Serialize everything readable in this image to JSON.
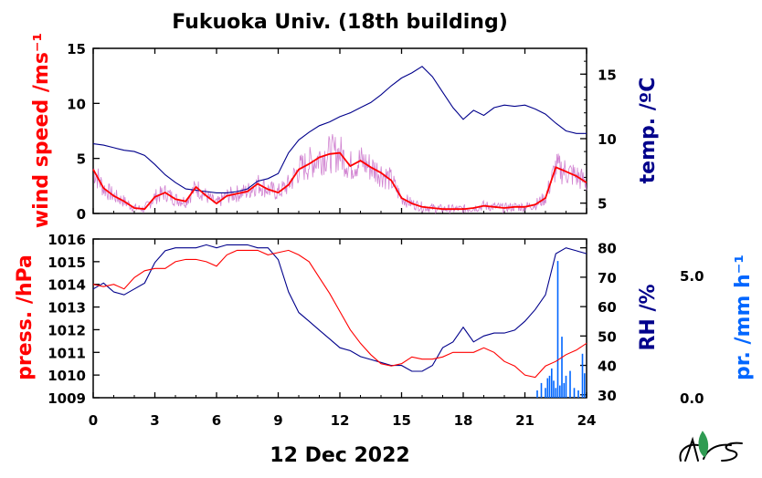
{
  "title": "Fukuoka Univ. (18th building)",
  "xlabel": "12 Dec 2022",
  "colors": {
    "wind": "#ff0000",
    "wind_raw": "#cc77cc",
    "temp": "#00008b",
    "press": "#ff0000",
    "rh": "#00008b",
    "precip": "#0066ff"
  },
  "chart_data": [
    {
      "type": "line",
      "panel": "top",
      "x_ticks": [
        "0",
        "3",
        "6",
        "9",
        "12",
        "15",
        "18",
        "21",
        "24"
      ],
      "xlim": [
        0,
        24
      ],
      "y_left": {
        "label": "wind speed /ms⁻¹",
        "ticks": [
          "0",
          "5",
          "10",
          "15"
        ],
        "ylim": [
          0,
          15
        ]
      },
      "y_right": {
        "label": "temp. /ºC",
        "ticks": [
          "5",
          "10",
          "15"
        ],
        "ylim": [
          4.2,
          17
        ]
      },
      "series": [
        {
          "axis": "left",
          "x": [
            0,
            0.5,
            1,
            1.5,
            2,
            2.5,
            3,
            3.5,
            4,
            4.5,
            5,
            5.5,
            6,
            6.5,
            7,
            7.5,
            8,
            8.5,
            9,
            9.5,
            10,
            10.5,
            11,
            11.5,
            12,
            12.5,
            13,
            13.5,
            14,
            14.5,
            15,
            15.5,
            16,
            16.5,
            17,
            17.5,
            18,
            18.5,
            19,
            19.5,
            20,
            20.5,
            21,
            21.5,
            22,
            22.5,
            23,
            23.5,
            24
          ],
          "y": [
            4,
            2.3,
            1.6,
            1.1,
            0.5,
            0.4,
            1.5,
            1.9,
            1.3,
            1.1,
            2.4,
            1.6,
            0.9,
            1.6,
            1.8,
            2.0,
            2.7,
            2.2,
            1.9,
            2.6,
            4.0,
            4.5,
            5.1,
            5.4,
            5.5,
            4.3,
            4.8,
            4.2,
            3.7,
            3.0,
            1.4,
            0.9,
            0.6,
            0.5,
            0.4,
            0.4,
            0.4,
            0.5,
            0.7,
            0.6,
            0.5,
            0.6,
            0.6,
            0.8,
            1.4,
            4.2,
            3.8,
            3.4,
            2.8
          ]
        },
        {
          "axis": "right",
          "x": [
            0,
            0.5,
            1,
            1.5,
            2,
            2.5,
            3,
            3.5,
            4,
            4.5,
            5,
            5.5,
            6,
            6.5,
            7,
            7.5,
            8,
            8.5,
            9,
            9.5,
            10,
            10.5,
            11,
            11.5,
            12,
            12.5,
            13,
            13.5,
            14,
            14.5,
            15,
            15.5,
            16,
            16.5,
            17,
            17.5,
            18,
            18.5,
            19,
            19.5,
            20,
            20.5,
            21,
            21.5,
            22,
            22.5,
            23,
            23.5,
            24
          ],
          "y": [
            9.6,
            9.5,
            9.3,
            9.1,
            9.0,
            8.7,
            8.0,
            7.2,
            6.6,
            6.1,
            6.0,
            5.9,
            5.8,
            5.8,
            5.9,
            6.1,
            6.7,
            6.9,
            7.3,
            8.9,
            9.9,
            10.5,
            11.0,
            11.3,
            11.7,
            12.0,
            12.4,
            12.8,
            13.4,
            14.1,
            14.7,
            15.1,
            15.6,
            14.8,
            13.6,
            12.4,
            11.5,
            12.2,
            11.8,
            12.4,
            12.6,
            12.5,
            12.6,
            12.3,
            11.9,
            11.2,
            10.6,
            10.4,
            10.4
          ]
        }
      ]
    },
    {
      "type": "line",
      "panel": "bottom",
      "x_ticks": [
        "0",
        "3",
        "6",
        "9",
        "12",
        "15",
        "18",
        "21",
        "24"
      ],
      "xlim": [
        0,
        24
      ],
      "y_left": {
        "label": "press. /hPa",
        "ticks": [
          "1009",
          "1010",
          "1011",
          "1012",
          "1013",
          "1014",
          "1015",
          "1016"
        ],
        "ylim": [
          1009,
          1016
        ]
      },
      "y_right": {
        "label": "RH /%",
        "ticks": [
          "30",
          "40",
          "50",
          "60",
          "70",
          "80"
        ],
        "ylim": [
          29,
          83
        ]
      },
      "y_right2": {
        "label": "pr. /mm h⁻¹",
        "ticks": [
          "0.0",
          "5.0"
        ],
        "ylim": [
          0,
          6.5
        ]
      },
      "series": [
        {
          "axis": "left",
          "x": [
            0,
            0.5,
            1,
            1.5,
            2,
            2.5,
            3,
            3.5,
            4,
            4.5,
            5,
            5.5,
            6,
            6.5,
            7,
            7.5,
            8,
            8.5,
            9,
            9.5,
            10,
            10.5,
            11,
            11.5,
            12,
            12.5,
            13,
            13.5,
            14,
            14.5,
            15,
            15.5,
            16,
            16.5,
            17,
            17.5,
            18,
            18.5,
            19,
            19.5,
            20,
            20.5,
            21,
            21.5,
            22,
            22.5,
            23,
            23.5,
            24
          ],
          "y": [
            1014.0,
            1013.9,
            1014.0,
            1013.8,
            1014.3,
            1014.6,
            1014.7,
            1014.7,
            1015.0,
            1015.1,
            1015.1,
            1015.0,
            1014.8,
            1015.3,
            1015.5,
            1015.5,
            1015.5,
            1015.3,
            1015.4,
            1015.5,
            1015.3,
            1015.0,
            1014.3,
            1013.6,
            1012.8,
            1012.0,
            1011.4,
            1010.9,
            1010.5,
            1010.4,
            1010.5,
            1010.8,
            1010.7,
            1010.7,
            1010.8,
            1011.0,
            1011.0,
            1011.0,
            1011.2,
            1011.0,
            1010.6,
            1010.4,
            1010.0,
            1009.9,
            1010.4,
            1010.6,
            1010.9,
            1011.1,
            1011.4
          ]
        },
        {
          "axis": "right",
          "x": [
            0,
            0.5,
            1,
            1.5,
            2,
            2.5,
            3,
            3.5,
            4,
            4.5,
            5,
            5.5,
            6,
            6.5,
            7,
            7.5,
            8,
            8.5,
            9,
            9.5,
            10,
            10.5,
            11,
            11.5,
            12,
            12.5,
            13,
            13.5,
            14,
            14.5,
            15,
            15.5,
            16,
            16.5,
            17,
            17.5,
            18,
            18.5,
            19,
            19.5,
            20,
            20.5,
            21,
            21.5,
            22,
            22.5,
            23,
            23.5,
            24
          ],
          "y": [
            66,
            68,
            65,
            64,
            66,
            68,
            75,
            79,
            80,
            80,
            80,
            81,
            80,
            81,
            81,
            81,
            80,
            80,
            76,
            65,
            58,
            55,
            52,
            49,
            46,
            45,
            43,
            42,
            41,
            40,
            40,
            38,
            38,
            40,
            46,
            48,
            53,
            48,
            50,
            51,
            51,
            52,
            55,
            59,
            64,
            78,
            80,
            79,
            78
          ]
        },
        {
          "axis": "right2",
          "type": "bar",
          "x": [
            21.6,
            21.8,
            22.0,
            22.1,
            22.2,
            22.3,
            22.4,
            22.5,
            22.6,
            22.7,
            22.8,
            22.9,
            23.0,
            23.2,
            23.4,
            23.6,
            23.8,
            23.9
          ],
          "y": [
            0.3,
            0.6,
            0.4,
            0.8,
            0.9,
            1.2,
            0.7,
            0.4,
            5.6,
            0.5,
            2.5,
            0.6,
            0.9,
            1.1,
            0.4,
            0.3,
            1.8,
            1.0
          ]
        }
      ]
    }
  ]
}
